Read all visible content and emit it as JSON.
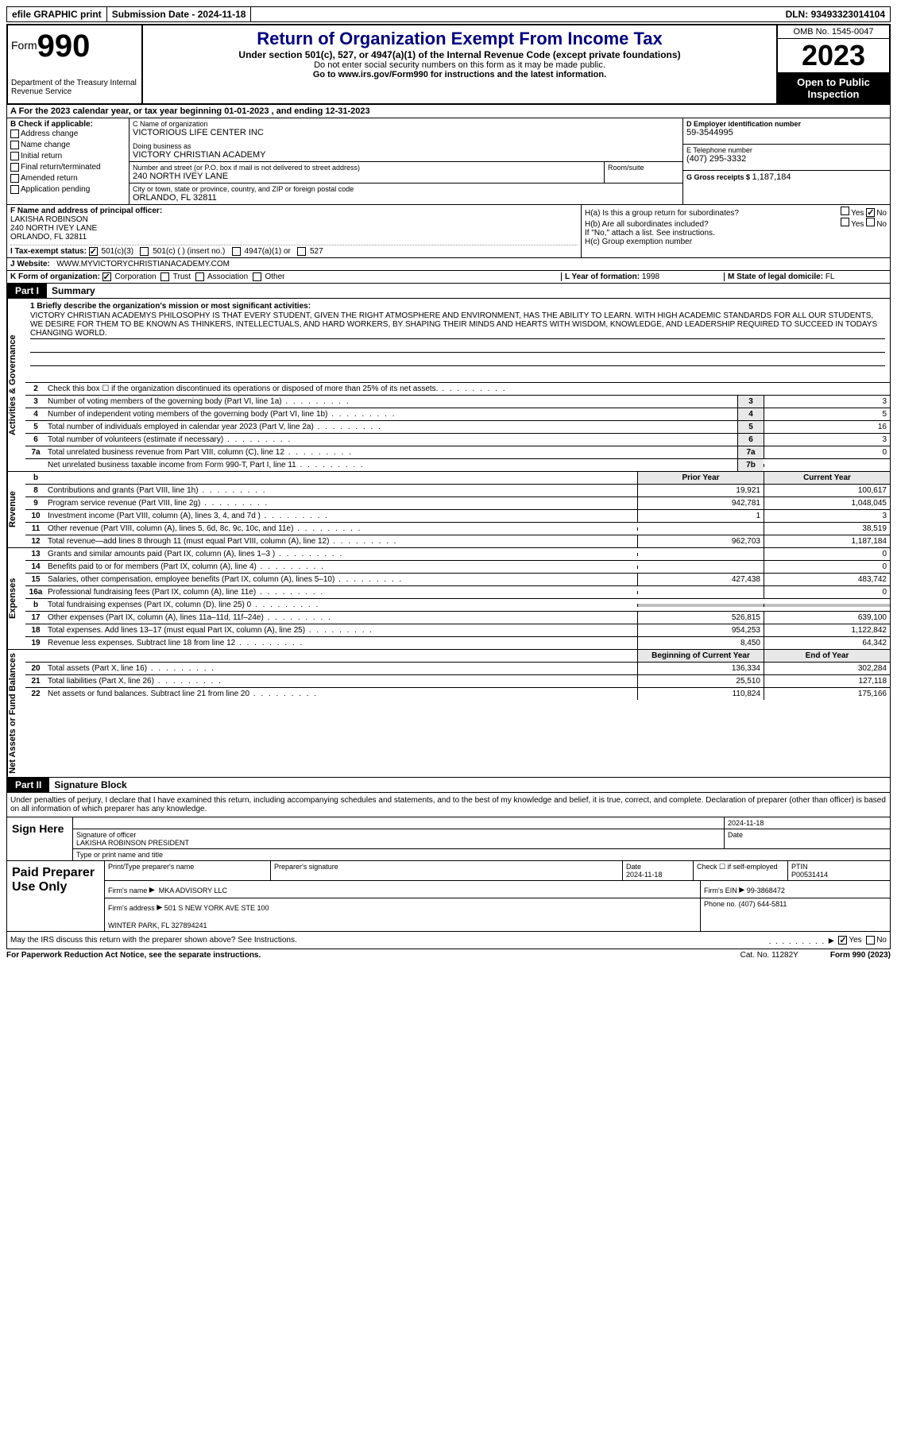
{
  "topbar": {
    "efile": "efile GRAPHIC print",
    "submission_label": "Submission Date - ",
    "submission_date": "2024-11-18",
    "dln_label": "DLN: ",
    "dln": "93493323014104"
  },
  "header": {
    "form_label": "Form",
    "form_num": "990",
    "dept": "Department of the Treasury\nInternal Revenue Service",
    "title": "Return of Organization Exempt From Income Tax",
    "subtitle": "Under section 501(c), 527, or 4947(a)(1) of the Internal Revenue Code (except private foundations)",
    "note": "Do not enter social security numbers on this form as it may be made public.",
    "goto": "Go to www.irs.gov/Form990 for instructions and the latest information.",
    "omb": "OMB No. 1545-0047",
    "year": "2023",
    "inspect": "Open to Public Inspection"
  },
  "sectionA": "A   For the 2023 calendar year, or tax year beginning 01-01-2023   , and ending 12-31-2023",
  "colB": {
    "label": "B Check if applicable:",
    "opts": [
      "Address change",
      "Name change",
      "Initial return",
      "Final return/terminated",
      "Amended return",
      "Application pending"
    ]
  },
  "colC": {
    "name_label": "C Name of organization",
    "name": "VICTORIOUS LIFE CENTER INC",
    "dba_label": "Doing business as",
    "dba": "VICTORY CHRISTIAN ACADEMY",
    "street_label": "Number and street (or P.O. box if mail is not delivered to street address)",
    "street": "240 NORTH IVEY LANE",
    "room_label": "Room/suite",
    "city_label": "City or town, state or province, country, and ZIP or foreign postal code",
    "city": "ORLANDO, FL  32811"
  },
  "colD": {
    "ein_label": "D Employer identification number",
    "ein": "59-3544995",
    "phone_label": "E Telephone number",
    "phone": "(407) 295-3332",
    "gross_label": "G Gross receipts $ ",
    "gross": "1,187,184"
  },
  "officer": {
    "label": "F  Name and address of principal officer:",
    "name": "LAKISHA ROBINSON",
    "street": "240 NORTH IVEY LANE",
    "city": "ORLANDO, FL  32811"
  },
  "taxexempt": {
    "label": "I   Tax-exempt status:",
    "o1": "501(c)(3)",
    "o2": "501(c) (  ) (insert no.)",
    "o3": "4947(a)(1) or",
    "o4": "527"
  },
  "website": {
    "label": "J   Website:",
    "value": "WWW.MYVICTORYCHRISTIANACADEMY.COM"
  },
  "groupH": {
    "a_label": "H(a)  Is this a group return for subordinates?",
    "b_label": "H(b)  Are all subordinates included?",
    "b_note": "If \"No,\" attach a list. See instructions.",
    "c_label": "H(c)  Group exemption number",
    "yes": "Yes",
    "no": "No"
  },
  "orgform": {
    "label": "K Form of organization:",
    "opts": [
      "Corporation",
      "Trust",
      "Association",
      "Other"
    ],
    "year_label": "L Year of formation: ",
    "year": "1998",
    "state_label": "M State of legal domicile: ",
    "state": "FL"
  },
  "part1": {
    "num": "Part I",
    "title": "Summary"
  },
  "mission": {
    "label": "1   Briefly describe the organization's mission or most significant activities:",
    "text": "VICTORY CHRISTIAN ACADEMYS PHILOSOPHY IS THAT EVERY STUDENT, GIVEN THE RIGHT ATMOSPHERE AND ENVIRONMENT, HAS THE ABILITY TO LEARN. WITH HIGH ACADEMIC STANDARDS FOR ALL OUR STUDENTS, WE DESIRE FOR THEM TO BE KNOWN AS THINKERS, INTELLECTUALS, AND HARD WORKERS, BY SHAPING THEIR MINDS AND HEARTS WITH WISDOM, KNOWLEDGE, AND LEADERSHIP REQUIRED TO SUCCEED IN TODAYS CHANGING WORLD."
  },
  "side_labels": {
    "gov": "Activities & Governance",
    "rev": "Revenue",
    "exp": "Expenses",
    "net": "Net Assets or Fund Balances"
  },
  "gov_lines": [
    {
      "num": "2",
      "desc": "Check this box  ☐  if the organization discontinued its operations or disposed of more than 25% of its net assets.",
      "box": "",
      "val": ""
    },
    {
      "num": "3",
      "desc": "Number of voting members of the governing body (Part VI, line 1a)",
      "box": "3",
      "val": "3"
    },
    {
      "num": "4",
      "desc": "Number of independent voting members of the governing body (Part VI, line 1b)",
      "box": "4",
      "val": "5"
    },
    {
      "num": "5",
      "desc": "Total number of individuals employed in calendar year 2023 (Part V, line 2a)",
      "box": "5",
      "val": "16"
    },
    {
      "num": "6",
      "desc": "Total number of volunteers (estimate if necessary)",
      "box": "6",
      "val": "3"
    },
    {
      "num": "7a",
      "desc": "Total unrelated business revenue from Part VIII, column (C), line 12",
      "box": "7a",
      "val": "0"
    },
    {
      "num": "",
      "desc": "Net unrelated business taxable income from Form 990-T, Part I, line 11",
      "box": "7b",
      "val": ""
    }
  ],
  "col_headers": {
    "num": "b",
    "prior": "Prior Year",
    "current": "Current Year"
  },
  "rev_lines": [
    {
      "num": "8",
      "desc": "Contributions and grants (Part VIII, line 1h)",
      "prior": "19,921",
      "cur": "100,617"
    },
    {
      "num": "9",
      "desc": "Program service revenue (Part VIII, line 2g)",
      "prior": "942,781",
      "cur": "1,048,045"
    },
    {
      "num": "10",
      "desc": "Investment income (Part VIII, column (A), lines 3, 4, and 7d )",
      "prior": "1",
      "cur": "3"
    },
    {
      "num": "11",
      "desc": "Other revenue (Part VIII, column (A), lines 5, 6d, 8c, 9c, 10c, and 11e)",
      "prior": "",
      "cur": "38,519"
    },
    {
      "num": "12",
      "desc": "Total revenue—add lines 8 through 11 (must equal Part VIII, column (A), line 12)",
      "prior": "962,703",
      "cur": "1,187,184"
    }
  ],
  "exp_lines": [
    {
      "num": "13",
      "desc": "Grants and similar amounts paid (Part IX, column (A), lines 1–3 )",
      "prior": "",
      "cur": "0"
    },
    {
      "num": "14",
      "desc": "Benefits paid to or for members (Part IX, column (A), line 4)",
      "prior": "",
      "cur": "0"
    },
    {
      "num": "15",
      "desc": "Salaries, other compensation, employee benefits (Part IX, column (A), lines 5–10)",
      "prior": "427,438",
      "cur": "483,742"
    },
    {
      "num": "16a",
      "desc": "Professional fundraising fees (Part IX, column (A), line 11e)",
      "prior": "",
      "cur": "0"
    },
    {
      "num": "b",
      "desc": "Total fundraising expenses (Part IX, column (D), line 25) 0",
      "prior": "GRAY",
      "cur": "GRAY"
    },
    {
      "num": "17",
      "desc": "Other expenses (Part IX, column (A), lines 11a–11d, 11f–24e)",
      "prior": "526,815",
      "cur": "639,100"
    },
    {
      "num": "18",
      "desc": "Total expenses. Add lines 13–17 (must equal Part IX, column (A), line 25)",
      "prior": "954,253",
      "cur": "1,122,842"
    },
    {
      "num": "19",
      "desc": "Revenue less expenses. Subtract line 18 from line 12",
      "prior": "8,450",
      "cur": "64,342"
    }
  ],
  "net_headers": {
    "prior": "Beginning of Current Year",
    "cur": "End of Year"
  },
  "net_lines": [
    {
      "num": "20",
      "desc": "Total assets (Part X, line 16)",
      "prior": "136,334",
      "cur": "302,284"
    },
    {
      "num": "21",
      "desc": "Total liabilities (Part X, line 26)",
      "prior": "25,510",
      "cur": "127,118"
    },
    {
      "num": "22",
      "desc": "Net assets or fund balances. Subtract line 21 from line 20",
      "prior": "110,824",
      "cur": "175,166"
    }
  ],
  "part2": {
    "num": "Part II",
    "title": "Signature Block"
  },
  "sig_intro": "Under penalties of perjury, I declare that I have examined this return, including accompanying schedules and statements, and to the best of my knowledge and belief, it is true, correct, and complete. Declaration of preparer (other than officer) is based on all information of which preparer has any knowledge.",
  "sign": {
    "label": "Sign Here",
    "date": "2024-11-18",
    "sig_label": "Signature of officer",
    "officer": "LAKISHA ROBINSON  PRESIDENT",
    "type_label": "Type or print name and title",
    "date_label": "Date"
  },
  "paid": {
    "label": "Paid Preparer Use Only",
    "h1": "Print/Type preparer's name",
    "h2": "Preparer's signature",
    "h3_label": "Date",
    "h3": "2024-11-18",
    "h4": "Check ☐ if self-employed",
    "h5_label": "PTIN",
    "h5": "P00531414",
    "firm_label": "Firm's name",
    "firm": "MKA ADVISORY LLC",
    "ein_label": "Firm's EIN",
    "ein": "99-3868472",
    "addr_label": "Firm's address",
    "addr1": "501 S NEW YORK AVE STE 100",
    "addr2": "WINTER PARK, FL  327894241",
    "phone_label": "Phone no.",
    "phone": "(407) 644-5811"
  },
  "discuss": {
    "text": "May the IRS discuss this return with the preparer shown above? See Instructions.",
    "yes": "Yes",
    "no": "No"
  },
  "footer": {
    "left": "For Paperwork Reduction Act Notice, see the separate instructions.",
    "mid": "Cat. No. 11282Y",
    "right": "Form 990 (2023)"
  }
}
